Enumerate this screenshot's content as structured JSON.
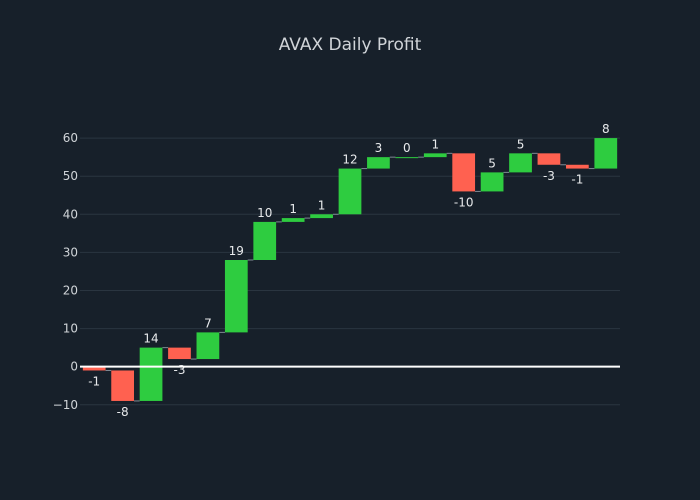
{
  "chart_data": {
    "type": "waterfall",
    "title": "AVAX Daily Profit",
    "xlabel": "",
    "ylabel": "",
    "ylim": [
      -14,
      70
    ],
    "yticks": [
      -10,
      0,
      10,
      20,
      30,
      40,
      50,
      60
    ],
    "grid": true,
    "values": [
      -1,
      -8,
      14,
      -3,
      7,
      19,
      10,
      1,
      1,
      12,
      3,
      0,
      1,
      -10,
      5,
      5,
      -3,
      -1,
      8
    ],
    "colors": {
      "increase": "#2ecc40",
      "decrease": "#ff6150",
      "zero_line": "#ffffff"
    }
  }
}
